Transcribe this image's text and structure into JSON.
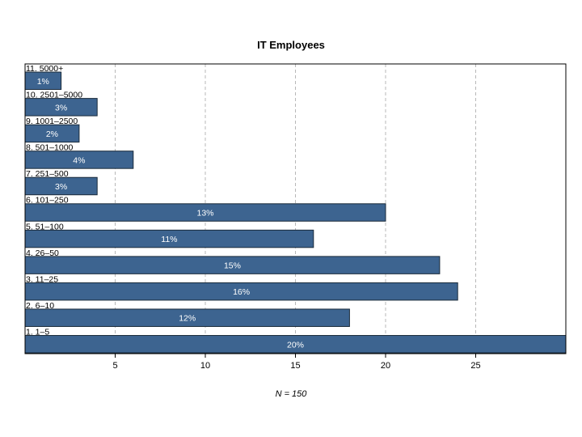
{
  "chart_data": {
    "type": "bar",
    "orientation": "horizontal",
    "title": "IT Employees",
    "xlabel": "N = 150",
    "ylabel": "",
    "xlim": [
      0,
      30
    ],
    "xticks": [
      5,
      10,
      15,
      20,
      25
    ],
    "grid": true,
    "bar_color": "#3d6490",
    "categories": [
      "1. 1–5",
      "2. 6–10",
      "3. 11–25",
      "4. 26–50",
      "5. 51–100",
      "6. 101–250",
      "7. 251–500",
      "8. 501–1000",
      "9. 1001–2500",
      "10. 2501–5000",
      "11. 5000+"
    ],
    "values": [
      30,
      18,
      24,
      23,
      16,
      20,
      4,
      6,
      3,
      4,
      2
    ],
    "labels": [
      "20%",
      "12%",
      "16%",
      "15%",
      "11%",
      "13%",
      "3%",
      "4%",
      "2%",
      "3%",
      "1%"
    ]
  }
}
